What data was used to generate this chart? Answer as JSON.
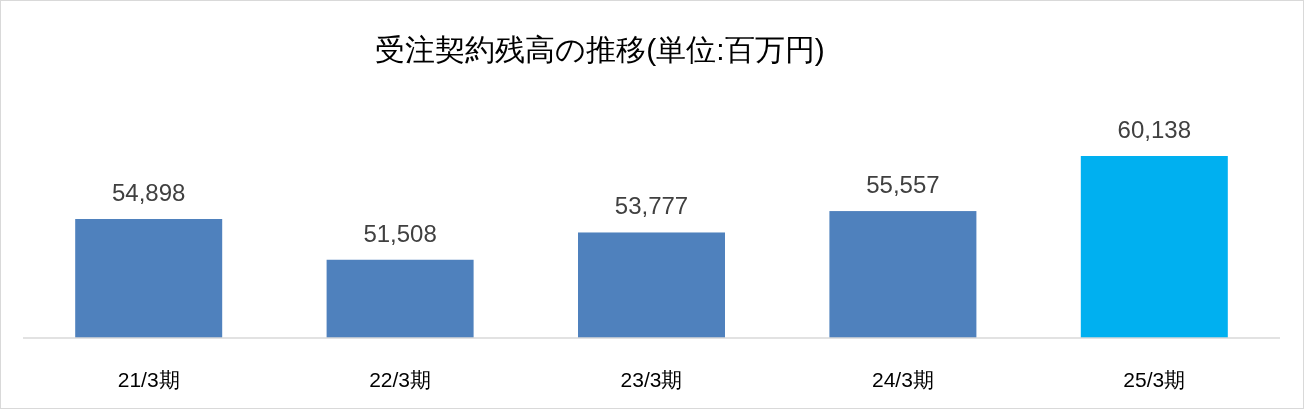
{
  "chart_data": {
    "type": "bar",
    "title": "受注契約残高の推移(単位:百万円)",
    "categories": [
      "21/3期",
      "22/3期",
      "23/3期",
      "24/3期",
      "25/3期"
    ],
    "values": [
      54898,
      51508,
      53777,
      55557,
      60138
    ],
    "colors": [
      "#4f81bd",
      "#4f81bd",
      "#4f81bd",
      "#4f81bd",
      "#00b0f0"
    ],
    "value_labels": [
      "54,898",
      "51,508",
      "53,777",
      "55,557",
      "60,138"
    ],
    "ylim": [
      45000,
      60138
    ],
    "tick_labels": "x"
  }
}
